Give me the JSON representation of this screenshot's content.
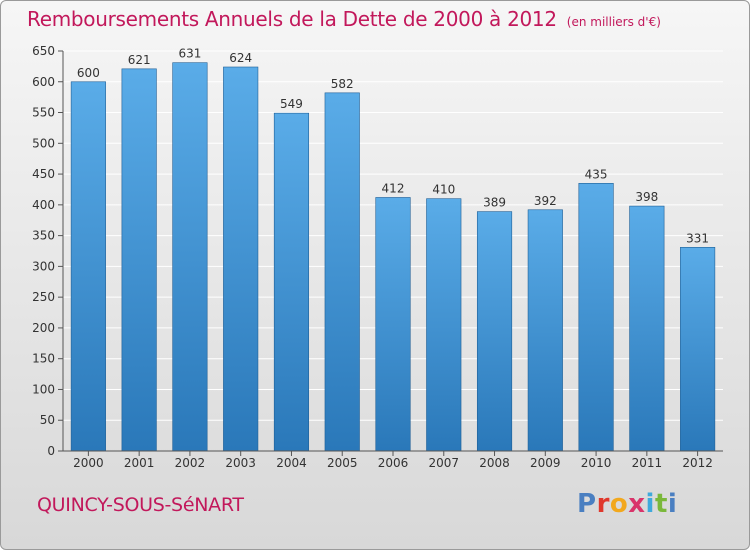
{
  "title": "Remboursements Annuels de la Dette de 2000 à 2012",
  "title_unit": "(en milliers d'€)",
  "city": "QUINCY-SOUS-SéNART",
  "logo": {
    "text": "Proxiti",
    "colors": [
      "#4a7fc1",
      "#e0382c",
      "#f2a81d",
      "#d9346b",
      "#3fa9dc",
      "#7ab83a",
      "#4a7fc1"
    ]
  },
  "colors": {
    "title": "#c2185b",
    "bar_top": "#5aace8",
    "bar_bottom": "#2a78b9",
    "grid": "#ffffff"
  },
  "chart_data": {
    "type": "bar",
    "categories": [
      "2000",
      "2001",
      "2002",
      "2003",
      "2004",
      "2005",
      "2006",
      "2007",
      "2008",
      "2009",
      "2010",
      "2011",
      "2012"
    ],
    "values": [
      600,
      621,
      631,
      624,
      549,
      582,
      412,
      410,
      389,
      392,
      435,
      398,
      331
    ],
    "data_labels": [
      "600",
      "621",
      "631",
      "624",
      "549",
      "582",
      "412",
      "410",
      "389",
      "392",
      "435",
      "398",
      "331"
    ],
    "ylim": [
      0,
      650
    ],
    "yticks": [
      0,
      50,
      100,
      150,
      200,
      250,
      300,
      350,
      400,
      450,
      500,
      550,
      600,
      650
    ],
    "ytick_labels": [
      "0",
      "50",
      "100",
      "150",
      "200",
      "250",
      "300",
      "350",
      "400",
      "450",
      "500",
      "550",
      "600",
      "650"
    ],
    "grid": true,
    "legend": "none"
  }
}
